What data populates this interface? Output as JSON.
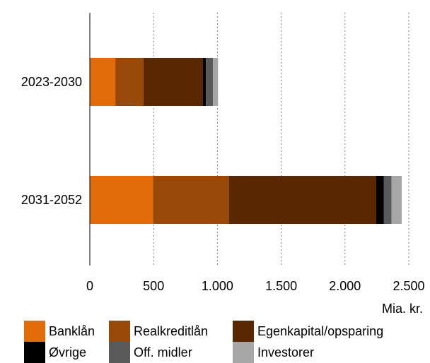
{
  "chart_data": {
    "type": "bar",
    "orientation": "horizontal",
    "stacked": true,
    "categories": [
      "2023-2030",
      "2031-2052"
    ],
    "series": [
      {
        "name": "Banklån",
        "color": "#E36C0A",
        "values": [
          200,
          495
        ]
      },
      {
        "name": "Realkreditlån",
        "color": "#984807",
        "values": [
          220,
          595
        ]
      },
      {
        "name": "Egenkapital/opsparing",
        "color": "#5A2800",
        "values": [
          465,
          1155
        ]
      },
      {
        "name": "Øvrige",
        "color": "#000000",
        "values": [
          25,
          60
        ]
      },
      {
        "name": "Off. midler",
        "color": "#595959",
        "values": [
          55,
          60
        ]
      },
      {
        "name": "Investorer",
        "color": "#A6A6A6",
        "values": [
          40,
          80
        ]
      }
    ],
    "xlim": [
      0,
      2500
    ],
    "xticks": [
      0,
      500,
      1000,
      1500,
      2000,
      2500
    ],
    "xtick_labels": [
      "0",
      "500",
      "1.000",
      "1.500",
      "2.000",
      "2.500"
    ],
    "xlabel": "Mia. kr.",
    "grid": "vertical dotted",
    "legend_position": "bottom"
  }
}
